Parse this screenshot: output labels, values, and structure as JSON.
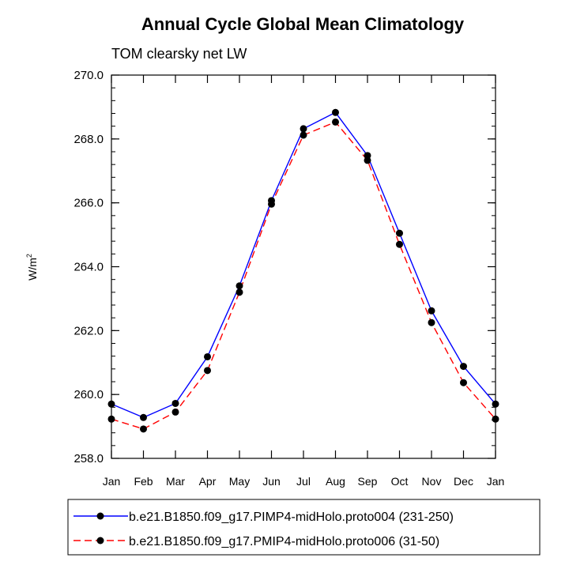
{
  "chart_data": {
    "type": "line",
    "title": "Annual Cycle Global Mean Climatology",
    "subtitle": "TOM clearsky net LW",
    "ylabel": "W/m",
    "ylabel_sup": "2",
    "xlabel": "",
    "categories": [
      "Jan",
      "Feb",
      "Mar",
      "Apr",
      "May",
      "Jun",
      "Jul",
      "Aug",
      "Sep",
      "Oct",
      "Nov",
      "Dec",
      "Jan"
    ],
    "ylim": [
      258.0,
      270.0
    ],
    "yticks": [
      "258.0",
      "260.0",
      "262.0",
      "264.0",
      "266.0",
      "268.0",
      "270.0"
    ],
    "ytick_values": [
      258,
      260,
      262,
      264,
      266,
      268,
      270
    ],
    "legend_position": "bottom",
    "series": [
      {
        "name": "b.e21.B1850.f09_g17.PIMP4-midHolo.proto004 (231-250)",
        "color": "#0000ff",
        "dash": "solid",
        "values": [
          259.7,
          259.28,
          259.72,
          261.18,
          263.4,
          266.07,
          268.32,
          268.83,
          267.48,
          265.05,
          262.62,
          260.88,
          259.7
        ]
      },
      {
        "name": "b.e21.B1850.f09_g17.PMIP4-midHolo.proto006 (31-50)",
        "color": "#ff0000",
        "dash": "dashed",
        "values": [
          259.23,
          258.92,
          259.45,
          260.75,
          263.2,
          265.96,
          268.12,
          268.53,
          267.33,
          264.7,
          262.25,
          260.37,
          259.23
        ]
      }
    ]
  }
}
